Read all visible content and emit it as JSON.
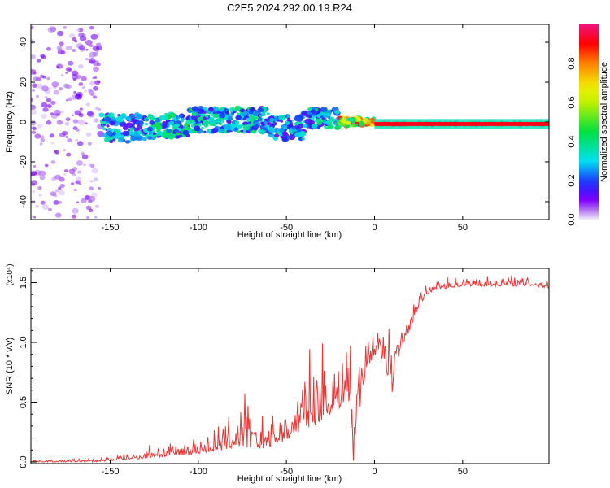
{
  "chart_data": [
    {
      "type": "heatmap",
      "title": "C2E5.2024.292.00.19.R24",
      "xlabel": "Height of straight line (km)",
      "ylabel": "Frequency (Hz)",
      "xlim": [
        -195,
        99
      ],
      "ylim": [
        -49,
        49
      ],
      "xticks": [
        -150,
        -100,
        -50,
        0,
        50
      ],
      "yticks": [
        -40,
        -20,
        0,
        20,
        40
      ],
      "colorbar": {
        "label": "Normalized spectral amplitude",
        "ticks": [
          "0.0",
          "0.2",
          "0.4",
          "0.6",
          "0.8"
        ],
        "range": [
          0,
          1
        ]
      },
      "bands": [
        {
          "x0": -195,
          "x1": -155,
          "center_hz": 0,
          "spread_hz": 48,
          "amplitude": 0.08,
          "density": 6
        },
        {
          "x0": -155,
          "x1": -130,
          "center_hz": -3,
          "spread_hz": 7,
          "amplitude": 0.3,
          "density": 5
        },
        {
          "x0": -130,
          "x1": -105,
          "center_hz": -2,
          "spread_hz": 6,
          "amplitude": 0.38,
          "density": 5
        },
        {
          "x0": -105,
          "x1": -60,
          "center_hz": 1,
          "spread_hz": 6,
          "amplitude": 0.35,
          "density": 6
        },
        {
          "x0": -60,
          "x1": -40,
          "center_hz": -3,
          "spread_hz": 6,
          "amplitude": 0.3,
          "density": 5
        },
        {
          "x0": -40,
          "x1": -20,
          "center_hz": 2,
          "spread_hz": 5,
          "amplitude": 0.35,
          "density": 5
        },
        {
          "x0": -20,
          "x1": 0,
          "center_hz": 0,
          "spread_hz": 2,
          "amplitude": 0.75,
          "density": 5
        },
        {
          "x0": 0,
          "x1": 99,
          "center_hz": -1,
          "spread_hz": 1,
          "amplitude": 0.92,
          "density": 4
        }
      ]
    },
    {
      "type": "line",
      "xlabel": "Height of straight line (km)",
      "ylabel": "SNR (10 * v/v)",
      "y_multiplier": "(x10⁴)",
      "xlim": [
        -195,
        99
      ],
      "ylim": [
        0,
        1.62
      ],
      "xticks": [
        -150,
        -100,
        -50,
        0,
        50
      ],
      "yticks": [
        "0.0",
        "0.5",
        "1.0",
        "1.5"
      ],
      "color": "#ee3333",
      "series": {
        "x": [
          -195,
          -190,
          -180,
          -170,
          -160,
          -150,
          -140,
          -130,
          -125,
          -120,
          -115,
          -110,
          -105,
          -100,
          -95,
          -90,
          -85,
          -80,
          -75,
          -70,
          -65,
          -60,
          -55,
          -50,
          -45,
          -40,
          -35,
          -30,
          -25,
          -20,
          -15,
          -12,
          -10,
          -5,
          0,
          5,
          10,
          15,
          20,
          25,
          30,
          35,
          40,
          50,
          60,
          70,
          80,
          90,
          99
        ],
        "lo": [
          0.0,
          0.0,
          0.0,
          0.0,
          0.0,
          0.01,
          0.02,
          0.03,
          0.04,
          0.04,
          0.05,
          0.05,
          0.06,
          0.07,
          0.08,
          0.09,
          0.1,
          0.12,
          0.12,
          0.12,
          0.11,
          0.12,
          0.15,
          0.18,
          0.22,
          0.28,
          0.3,
          0.35,
          0.4,
          0.45,
          0.55,
          0.0,
          0.3,
          0.75,
          0.9,
          0.85,
          0.55,
          0.95,
          1.1,
          1.3,
          1.4,
          1.45,
          1.45,
          1.47,
          1.47,
          1.47,
          1.47,
          1.47,
          1.45
        ],
        "hi": [
          0.03,
          0.02,
          0.02,
          0.03,
          0.03,
          0.05,
          0.07,
          0.1,
          0.22,
          0.15,
          0.18,
          0.2,
          0.2,
          0.22,
          0.25,
          0.3,
          0.35,
          0.45,
          0.68,
          0.4,
          0.42,
          0.4,
          0.45,
          0.55,
          0.7,
          0.85,
          1.0,
          1.05,
          0.85,
          1.1,
          1.4,
          0.6,
          1.3,
          1.2,
          1.1,
          1.62,
          1.25,
          1.2,
          1.25,
          1.4,
          1.5,
          1.52,
          1.55,
          1.55,
          1.56,
          1.56,
          1.57,
          1.58,
          1.55
        ]
      }
    }
  ]
}
